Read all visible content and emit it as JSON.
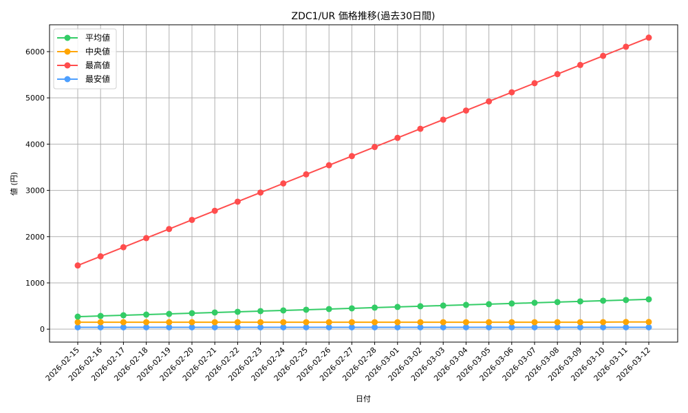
{
  "chart_data": {
    "type": "line",
    "title": "ZDC1/UR 価格推移(過去30日間)",
    "xlabel": "日付",
    "ylabel": "値 (円)",
    "ylim": [
      -280,
      6580
    ],
    "yticks": [
      0,
      1000,
      2000,
      3000,
      4000,
      5000,
      6000
    ],
    "grid": true,
    "legend_position": "upper left",
    "categories": [
      "2026-02-15",
      "2026-02-16",
      "2026-02-17",
      "2026-02-18",
      "2026-02-19",
      "2026-02-20",
      "2026-02-21",
      "2026-02-22",
      "2026-02-23",
      "2026-02-24",
      "2026-02-25",
      "2026-02-26",
      "2026-02-27",
      "2026-02-28",
      "2026-03-01",
      "2026-03-02",
      "2026-03-03",
      "2026-03-04",
      "2026-03-05",
      "2026-03-06",
      "2026-03-07",
      "2026-03-08",
      "2026-03-09",
      "2026-03-10",
      "2026-03-11",
      "2026-03-12"
    ],
    "series": [
      {
        "name": "平均値",
        "color": "#33cc66",
        "values": [
          270,
          285,
          300,
          315,
          330,
          345,
          360,
          375,
          390,
          405,
          420,
          435,
          450,
          465,
          480,
          495,
          510,
          525,
          540,
          555,
          570,
          585,
          600,
          615,
          630,
          645
        ]
      },
      {
        "name": "中央値",
        "color": "#ffa500",
        "values": [
          150,
          150,
          150,
          150,
          150,
          150,
          150,
          150,
          150,
          150,
          150,
          150,
          150,
          150,
          150,
          150,
          150,
          150,
          150,
          150,
          150,
          150,
          150,
          152,
          155,
          155
        ]
      },
      {
        "name": "最高値",
        "color": "#ff4d4d",
        "values": [
          1377,
          1574,
          1771,
          1968,
          2165,
          2362,
          2559,
          2756,
          2953,
          3150,
          3347,
          3544,
          3741,
          3938,
          4135,
          4332,
          4529,
          4726,
          4923,
          5120,
          5317,
          5514,
          5711,
          5908,
          6105,
          6302
        ]
      },
      {
        "name": "最安値",
        "color": "#4d9fff",
        "values": [
          40,
          40,
          40,
          40,
          40,
          40,
          40,
          40,
          40,
          40,
          40,
          40,
          40,
          40,
          40,
          40,
          40,
          40,
          40,
          40,
          40,
          40,
          40,
          40,
          40,
          40
        ]
      }
    ]
  }
}
